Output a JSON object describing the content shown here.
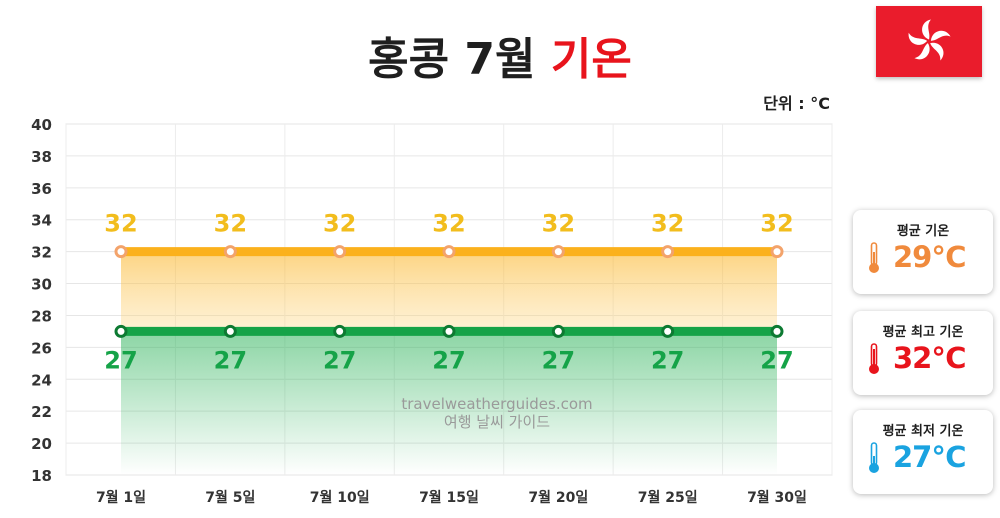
{
  "title": {
    "main": "홍콩 7월",
    "accent": "기온"
  },
  "unit_label": "단위 : °C",
  "watermark": {
    "line1": "travelweatherguides.com",
    "line2": "여행 날씨 가이드"
  },
  "cards": [
    {
      "label": "평균 기온",
      "value": "29℃",
      "color": "#f08a3c"
    },
    {
      "label": "평균 최고 기온",
      "value": "32℃",
      "color": "#e8141c"
    },
    {
      "label": "평균 최저 기온",
      "value": "27℃",
      "color": "#1aa3e0"
    }
  ],
  "colors": {
    "high_line": "#fbb11c",
    "high_label": "#f2bd1d",
    "low_line": "#15a348",
    "low_label": "#15a348",
    "flag": "#ea1c2c"
  },
  "chart_data": {
    "type": "line",
    "categories": [
      "7월 1일",
      "7월 5일",
      "7월 10일",
      "7월 15일",
      "7월 20일",
      "7월 25일",
      "7월 30일"
    ],
    "series": [
      {
        "values": [
          32,
          32,
          32,
          32,
          32,
          32,
          32
        ]
      },
      {
        "values": [
          27,
          27,
          27,
          27,
          27,
          27,
          27
        ]
      }
    ],
    "yticks": [
      18,
      20,
      22,
      24,
      26,
      28,
      30,
      32,
      34,
      36,
      38,
      40
    ],
    "ylim": [
      18,
      40
    ],
    "grid": true
  }
}
